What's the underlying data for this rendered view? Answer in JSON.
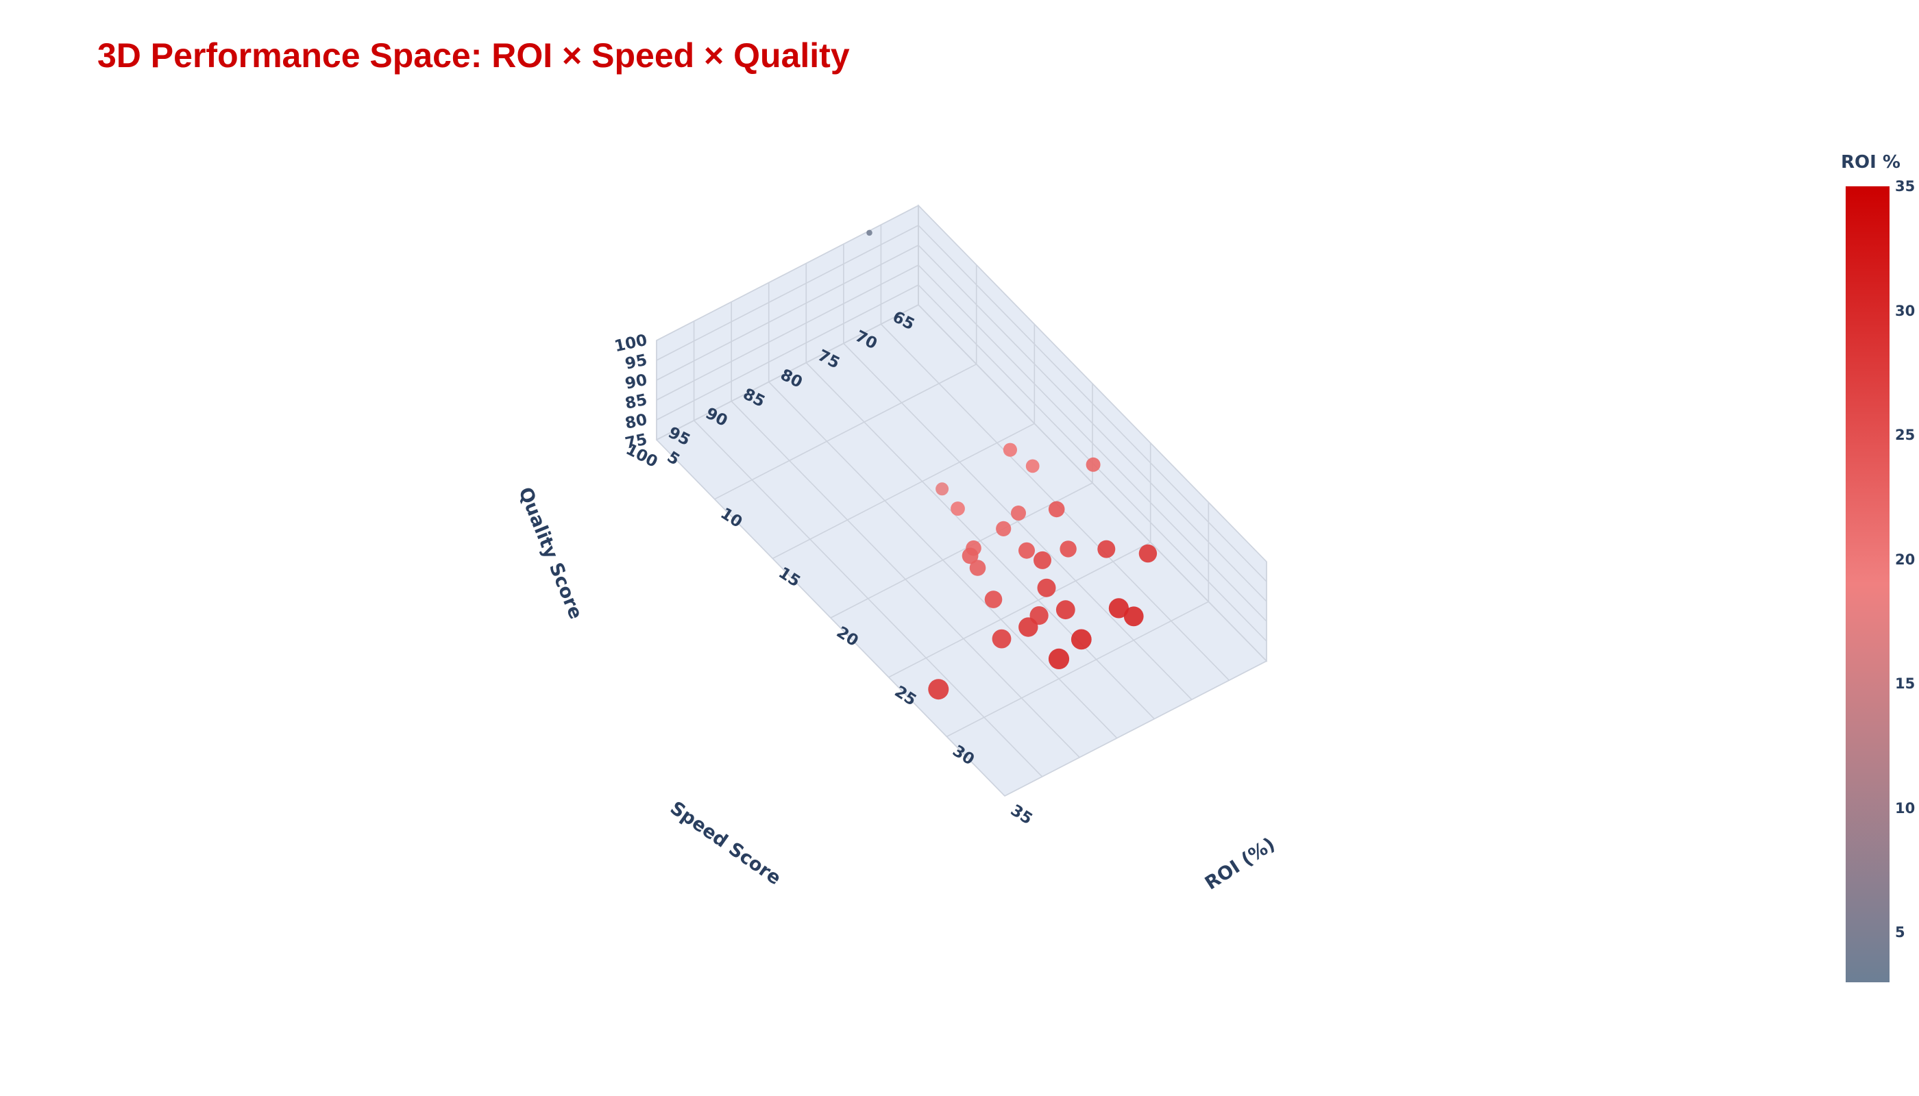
{
  "chart_data": {
    "type": "scatter3d",
    "title": "3D Performance Space: ROI × Speed × Quality",
    "x_axis": {
      "label": "ROI (%)",
      "range": [
        5,
        35
      ],
      "ticks": [
        5,
        10,
        15,
        20,
        25,
        30,
        35
      ]
    },
    "y_axis": {
      "label": "Speed Score",
      "range": [
        65,
        100
      ],
      "ticks": [
        65,
        70,
        75,
        80,
        85,
        90,
        95,
        100
      ]
    },
    "z_axis": {
      "label": "Quality Score",
      "range": [
        75,
        100
      ],
      "ticks": [
        75,
        80,
        85,
        90,
        95,
        100
      ]
    },
    "colorbar": {
      "title": "ROI %",
      "range": [
        3,
        35
      ],
      "ticks": [
        5,
        10,
        15,
        20,
        25,
        30,
        35
      ],
      "colors": [
        "#6c7f95",
        "#f08080",
        "#cc0000"
      ]
    },
    "title_color": "#cc0000",
    "text_color": "#2a3f5f",
    "pane_color": "#e5ebf5",
    "grid_color": "#cdd3de",
    "points": [
      {
        "roi": 22,
        "speed": 68,
        "quality": 88.5
      },
      {
        "roi": 28,
        "speed": 70,
        "quality": 86
      },
      {
        "roi": 20,
        "speed": 73,
        "quality": 87
      },
      {
        "roi": 30,
        "speed": 75,
        "quality": 81
      },
      {
        "roi": 25,
        "speed": 76,
        "quality": 84
      },
      {
        "roi": 24,
        "speed": 80,
        "quality": 84.5
      },
      {
        "roi": 30,
        "speed": 77,
        "quality": 85
      },
      {
        "roi": 28,
        "speed": 81,
        "quality": 82.5
      },
      {
        "roi": 27,
        "speed": 83,
        "quality": 80
      },
      {
        "roi": 30,
        "speed": 85,
        "quality": 80
      },
      {
        "roi": 27,
        "speed": 88,
        "quality": 79
      },
      {
        "roi": 30,
        "speed": 82,
        "quality": 82
      },
      {
        "roi": 22,
        "speed": 78,
        "quality": 86
      },
      {
        "roi": 27,
        "speed": 82,
        "quality": 86
      },
      {
        "roi": 23,
        "speed": 86,
        "quality": 86
      },
      {
        "roi": 18,
        "speed": 82,
        "quality": 84
      },
      {
        "roi": 23,
        "speed": 85,
        "quality": 82
      },
      {
        "roi": 26,
        "speed": 81,
        "quality": 89
      },
      {
        "roi": 20,
        "speed": 76,
        "quality": 94
      },
      {
        "roi": 24,
        "speed": 76,
        "quality": 91
      },
      {
        "roi": 27,
        "speed": 74,
        "quality": 88
      },
      {
        "roi": 22,
        "speed": 84,
        "quality": 83
      },
      {
        "roi": 25,
        "speed": 86,
        "quality": 81
      },
      {
        "roi": 20,
        "speed": 83,
        "quality": 86
      },
      {
        "roi": 28,
        "speed": 86,
        "quality": 83
      },
      {
        "roi": 28,
        "speed": 98,
        "quality": 79
      },
      {
        "roi": 22,
        "speed": 80,
        "quality": 84
      },
      {
        "roi": 4,
        "speed": 70,
        "quality": 95
      }
    ]
  }
}
